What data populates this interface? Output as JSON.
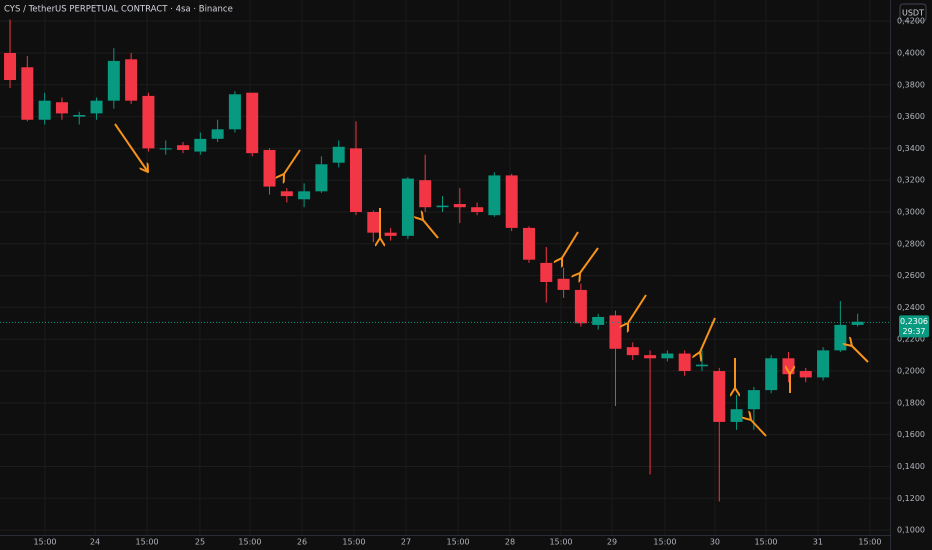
{
  "chart_data": {
    "type": "candlestick",
    "title": "CYS / TetherUS PERPETUAL CONTRACT · 4sa · Binance",
    "currency": "USDT",
    "up_color": "#089981",
    "down_color": "#f23645",
    "grid": true,
    "categories": [
      null,
      null,
      null,
      null,
      null,
      null,
      null,
      null,
      null,
      null,
      null,
      null,
      null,
      null,
      null,
      null,
      null,
      null,
      null,
      null,
      null,
      null,
      null,
      null,
      null,
      null,
      null,
      null,
      null,
      null,
      null,
      null,
      null,
      null,
      null,
      null,
      null,
      null,
      null,
      null,
      null,
      null,
      null,
      null,
      null,
      null,
      null,
      null,
      null,
      null
    ],
    "open": [
      0.4,
      0.391,
      0.358,
      0.369,
      0.36,
      0.362,
      0.37,
      0.396,
      0.373,
      0.34,
      0.342,
      0.338,
      0.346,
      0.352,
      0.375,
      0.339,
      0.313,
      0.308,
      0.313,
      0.331,
      0.34,
      0.3,
      0.287,
      0.285,
      0.32,
      0.303,
      0.305,
      0.303,
      0.298,
      0.323,
      0.29,
      0.268,
      0.258,
      0.251,
      0.229,
      0.235,
      0.215,
      0.21,
      0.208,
      0.211,
      0.203,
      0.2,
      0.168,
      0.176,
      0.188,
      0.208,
      0.2,
      0.196,
      0.213,
      0.229
    ],
    "high": [
      0.421,
      0.398,
      0.375,
      0.372,
      0.363,
      0.372,
      0.403,
      0.4,
      0.375,
      0.345,
      0.344,
      0.35,
      0.358,
      0.376,
      0.375,
      0.34,
      0.315,
      0.318,
      0.335,
      0.345,
      0.357,
      0.301,
      0.29,
      0.322,
      0.336,
      0.31,
      0.315,
      0.306,
      0.325,
      0.324,
      0.291,
      0.278,
      0.265,
      0.255,
      0.236,
      0.238,
      0.218,
      0.213,
      0.213,
      0.213,
      0.213,
      0.202,
      0.185,
      0.19,
      0.21,
      0.212,
      0.202,
      0.215,
      0.244,
      0.236
    ],
    "low": [
      0.378,
      0.357,
      0.355,
      0.358,
      0.355,
      0.358,
      0.365,
      0.368,
      0.338,
      0.336,
      0.337,
      0.336,
      0.344,
      0.35,
      0.335,
      0.311,
      0.306,
      0.303,
      0.312,
      0.328,
      0.298,
      0.281,
      0.282,
      0.283,
      0.3,
      0.3,
      0.293,
      0.298,
      0.297,
      0.288,
      0.268,
      0.243,
      0.246,
      0.228,
      0.226,
      0.178,
      0.207,
      0.135,
      0.206,
      0.197,
      0.2,
      0.118,
      0.163,
      0.163,
      0.186,
      0.193,
      0.193,
      0.194,
      0.212,
      0.228
    ],
    "close": [
      0.383,
      0.358,
      0.37,
      0.362,
      0.361,
      0.37,
      0.395,
      0.37,
      0.34,
      0.34,
      0.339,
      0.346,
      0.352,
      0.374,
      0.337,
      0.316,
      0.31,
      0.313,
      0.33,
      0.341,
      0.3,
      0.287,
      0.285,
      0.321,
      0.303,
      0.304,
      0.303,
      0.3,
      0.323,
      0.29,
      0.27,
      0.256,
      0.251,
      0.23,
      0.234,
      0.214,
      0.21,
      0.208,
      0.211,
      0.2,
      0.204,
      0.168,
      0.176,
      0.188,
      0.208,
      0.198,
      0.196,
      0.213,
      0.229,
      0.231
    ],
    "last_price": {
      "value": 0.2306,
      "label": "0,2306"
    },
    "countdown": "29:37",
    "ylim": [
      0.0969,
      0.4333
    ],
    "yticks": [
      {
        "value": 0.1,
        "label": "0,1000"
      },
      {
        "value": 0.12,
        "label": "0,1200"
      },
      {
        "value": 0.14,
        "label": "0,1400"
      },
      {
        "value": 0.16,
        "label": "0,1600"
      },
      {
        "value": 0.18,
        "label": "0,1800"
      },
      {
        "value": 0.2,
        "label": "0,2000"
      },
      {
        "value": 0.22,
        "label": "0,2200"
      },
      {
        "value": 0.24,
        "label": "0,2400"
      },
      {
        "value": 0.26,
        "label": "0,2600"
      },
      {
        "value": 0.28,
        "label": "0,2800"
      },
      {
        "value": 0.3,
        "label": "0,3000"
      },
      {
        "value": 0.32,
        "label": "0,3200"
      },
      {
        "value": 0.34,
        "label": "0,3400"
      },
      {
        "value": 0.36,
        "label": "0,3600"
      },
      {
        "value": 0.38,
        "label": "0,3800"
      },
      {
        "value": 0.4,
        "label": "0,4000"
      },
      {
        "value": 0.42,
        "label": "0,4200"
      }
    ],
    "xlim": [
      -0.58,
      50.87
    ],
    "xticks": [
      {
        "value": 2.02,
        "label": "15:00"
      },
      {
        "value": 4.91,
        "label": "24"
      },
      {
        "value": 7.92,
        "label": "15:00"
      },
      {
        "value": 10.98,
        "label": "25"
      },
      {
        "value": 13.87,
        "label": "15:00"
      },
      {
        "value": 16.88,
        "label": "26"
      },
      {
        "value": 19.88,
        "label": "15:00"
      },
      {
        "value": 22.89,
        "label": "27"
      },
      {
        "value": 25.9,
        "label": "15:00"
      },
      {
        "value": 28.9,
        "label": "28"
      },
      {
        "value": 31.85,
        "label": "15:00"
      },
      {
        "value": 34.8,
        "label": "29"
      },
      {
        "value": 37.86,
        "label": "15:00"
      },
      {
        "value": 40.75,
        "label": "30"
      },
      {
        "value": 43.7,
        "label": "15:00"
      },
      {
        "value": 46.7,
        "label": "31"
      },
      {
        "value": 49.71,
        "label": "15:00"
      }
    ]
  }
}
